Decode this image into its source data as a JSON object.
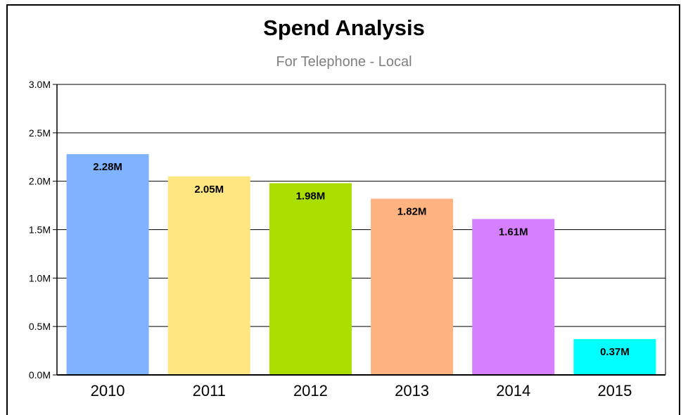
{
  "chart_data": {
    "type": "bar",
    "title": "Spend Analysis",
    "subtitle": "For Telephone - Local",
    "categories": [
      "2010",
      "2011",
      "2012",
      "2013",
      "2014",
      "2015"
    ],
    "values": [
      2.28,
      2.05,
      1.98,
      1.82,
      1.61,
      0.37
    ],
    "data_labels": [
      "2.28M",
      "2.05M",
      "1.98M",
      "1.82M",
      "1.61M",
      "0.37M"
    ],
    "colors": [
      "#7fb2ff",
      "#ffe680",
      "#aadd00",
      "#ffb380",
      "#d67fff",
      "#00ffff"
    ],
    "ylim": [
      0,
      3.0
    ],
    "yticks": [
      0,
      0.5,
      1.0,
      1.5,
      2.0,
      2.5,
      3.0
    ],
    "ytick_labels": [
      "0.0M",
      "0.5M",
      "1.0M",
      "1.5M",
      "2.0M",
      "2.5M",
      "3.0M"
    ],
    "grid": true,
    "legend": "none"
  }
}
